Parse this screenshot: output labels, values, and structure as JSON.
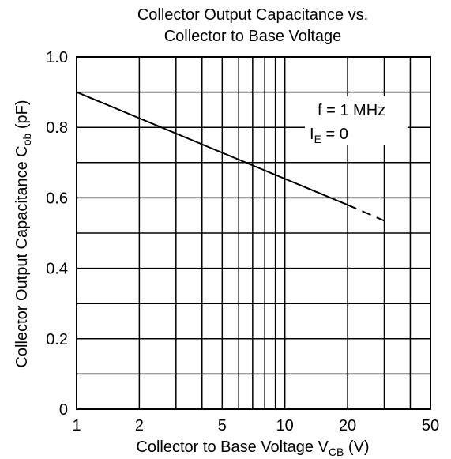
{
  "chart_data": {
    "type": "line",
    "title": [
      "Collector Output Capacitance vs.",
      "Collector to Base Voltage"
    ],
    "x_label": {
      "main": "Collector to Base Voltage  V",
      "sub": "CB",
      "rest": "  (V)"
    },
    "y_label": {
      "main": "Collector Output Capacitance  C",
      "sub": "ob",
      "rest": "  (pF)"
    },
    "annotations": [
      {
        "main": "f = 1 MHz"
      },
      {
        "main": "I",
        "sub": "E",
        "rest": " = 0"
      }
    ],
    "xlog": true,
    "xlim": [
      1,
      50
    ],
    "xticks": [
      1,
      2,
      5,
      10,
      20,
      50
    ],
    "xgrid_minor": [
      3,
      4,
      6,
      7,
      8,
      9,
      30,
      40
    ],
    "ylim": [
      0,
      1
    ],
    "yticks": [
      0,
      0.2,
      0.4,
      0.6,
      0.8,
      {
        "value": 1,
        "label": "1.0"
      }
    ],
    "ygrid_minor": [
      0.1,
      0.3,
      0.5,
      0.7,
      0.9
    ],
    "grid": true,
    "series": [
      {
        "color": "#000000",
        "dash": false,
        "x": [
          1,
          20
        ],
        "values": [
          0.9,
          0.58
        ]
      },
      {
        "color": "#000000",
        "dash": true,
        "x": [
          20,
          30
        ],
        "values": [
          0.58,
          0.535
        ]
      }
    ]
  }
}
